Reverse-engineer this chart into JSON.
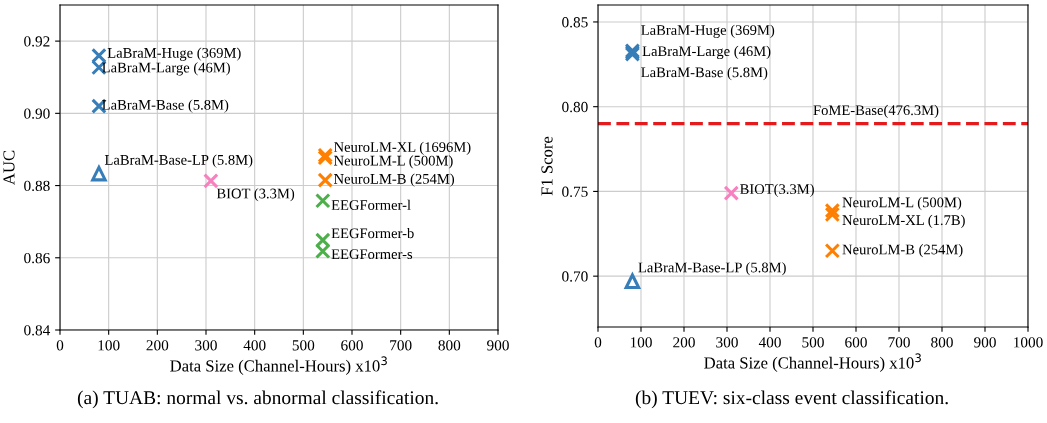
{
  "chart_data": [
    {
      "type": "scatter",
      "xlabel": "Data Size (Channel-Hours) x10$^{3}$",
      "ylabel": "AUC",
      "xlim": [
        0,
        900
      ],
      "ylim": [
        0.84,
        0.93
      ],
      "xticks": [
        0,
        100,
        200,
        300,
        400,
        500,
        600,
        700,
        800,
        900
      ],
      "yticks": [
        {
          "value": 0.84,
          "label": "0.84"
        },
        {
          "value": 0.86,
          "label": "0.86"
        },
        {
          "value": 0.88,
          "label": "0.88"
        },
        {
          "value": 0.9,
          "label": "0.90"
        },
        {
          "value": 0.92,
          "label": "0.92"
        }
      ],
      "grid": true,
      "annotations": [
        "(a) TUAB: normal vs. abnormal classification."
      ],
      "series": [
        {
          "name": "LaBraM-Huge (369M)",
          "color": "#377eb8",
          "marker": "cross",
          "x": [
            80
          ],
          "values": [
            0.916
          ]
        },
        {
          "name": "LaBraM-Large (46M)",
          "color": "#377eb8",
          "marker": "cross",
          "x": [
            80
          ],
          "values": [
            0.9127
          ]
        },
        {
          "name": "LaBraM-Base (5.8M)",
          "color": "#377eb8",
          "marker": "cross",
          "x": [
            80
          ],
          "values": [
            0.902
          ]
        },
        {
          "name": "LaBraM-Base-LP (5.8M)",
          "color": "#377eb8",
          "marker": "triangle",
          "x": [
            80
          ],
          "values": [
            0.8833
          ]
        },
        {
          "name": "BIOT (3.3M)",
          "color": "#f781bf",
          "marker": "cross",
          "x": [
            310
          ],
          "values": [
            0.8813
          ]
        },
        {
          "name": "NeuroLM-XL (1696M)",
          "color": "#ff7f00",
          "marker": "cross",
          "x": [
            545
          ],
          "values": [
            0.8884
          ]
        },
        {
          "name": "NeuroLM-L (500M)",
          "color": "#ff7f00",
          "marker": "cross",
          "x": [
            545
          ],
          "values": [
            0.8877
          ]
        },
        {
          "name": "NeuroLM-B (254M)",
          "color": "#ff7f00",
          "marker": "cross",
          "x": [
            545
          ],
          "values": [
            0.8815
          ]
        },
        {
          "name": "EEGFormer-l",
          "color": "#4daf4a",
          "marker": "cross",
          "x": [
            540
          ],
          "values": [
            0.8758
          ]
        },
        {
          "name": "EEGFormer-b",
          "color": "#4daf4a",
          "marker": "cross",
          "x": [
            540
          ],
          "values": [
            0.8649
          ]
        },
        {
          "name": "EEGFormer-s",
          "color": "#4daf4a",
          "marker": "cross",
          "x": [
            540
          ],
          "values": [
            0.8618
          ]
        }
      ]
    },
    {
      "type": "scatter",
      "xlabel": "Data Size (Channel-Hours) x10$^{3}$",
      "ylabel": "F1 Score",
      "xlim": [
        0,
        1000
      ],
      "ylim": [
        0.67,
        0.86
      ],
      "xticks": [
        0,
        100,
        200,
        300,
        400,
        500,
        600,
        700,
        800,
        900,
        1000
      ],
      "yticks": [
        {
          "value": 0.7,
          "label": "0.70"
        },
        {
          "value": 0.75,
          "label": "0.75"
        },
        {
          "value": 0.8,
          "label": "0.80"
        },
        {
          "value": 0.85,
          "label": "0.85"
        }
      ],
      "grid": true,
      "annotations": [
        "(b) TUEV: six-class event classification."
      ],
      "ref_lines": [
        {
          "axis": "y",
          "value": 0.79,
          "label": "FoME-Base(476.3M)",
          "color": "#e41a1c",
          "line_style": "dashed"
        }
      ],
      "series": [
        {
          "name": "LaBraM-Huge (369M)",
          "color": "#377eb8",
          "marker": "cross",
          "x": [
            80
          ],
          "values": [
            0.833
          ]
        },
        {
          "name": "LaBraM-Large (46M)",
          "color": "#377eb8",
          "marker": "cross",
          "x": [
            80
          ],
          "values": [
            0.832
          ]
        },
        {
          "name": "LaBraM-Base (5.8M)",
          "color": "#377eb8",
          "marker": "cross",
          "x": [
            80
          ],
          "values": [
            0.831
          ]
        },
        {
          "name": "LaBraM-Base-LP (5.8M)",
          "color": "#377eb8",
          "marker": "triangle",
          "x": [
            80
          ],
          "values": [
            0.697
          ]
        },
        {
          "name": "BIOT(3.3M)",
          "color": "#f781bf",
          "marker": "cross",
          "x": [
            310
          ],
          "values": [
            0.749
          ]
        },
        {
          "name": "NeuroLM-L (500M)",
          "color": "#ff7f00",
          "marker": "cross",
          "x": [
            545
          ],
          "values": [
            0.7387
          ]
        },
        {
          "name": "NeuroLM-XL (1.7B)",
          "color": "#ff7f00",
          "marker": "cross",
          "x": [
            545
          ],
          "values": [
            0.7364
          ]
        },
        {
          "name": "NeuroLM-B (254M)",
          "color": "#ff7f00",
          "marker": "cross",
          "x": [
            545
          ],
          "values": [
            0.715
          ]
        }
      ]
    }
  ]
}
